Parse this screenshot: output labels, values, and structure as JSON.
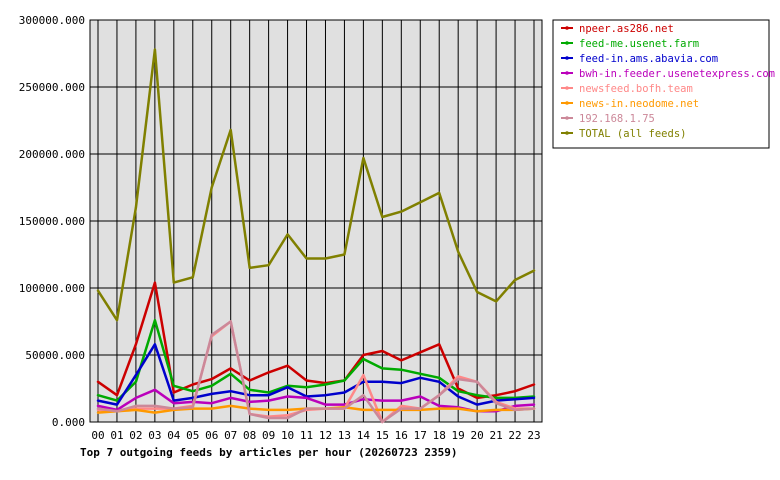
{
  "chart_data": {
    "type": "line",
    "title": "Top 7 outgoing feeds by articles per hour (20260723 2359)",
    "xlabel": "",
    "ylabel": "",
    "ylim": [
      0,
      300000
    ],
    "yticks": [
      "0.000",
      "50000.000",
      "100000.000",
      "150000.000",
      "200000.000",
      "250000.000",
      "300000.000"
    ],
    "ytick_values": [
      0,
      50000,
      100000,
      150000,
      200000,
      250000,
      300000
    ],
    "grid": true,
    "legend_position": "right",
    "x": [
      "00",
      "01",
      "02",
      "03",
      "04",
      "05",
      "06",
      "07",
      "08",
      "09",
      "10",
      "11",
      "12",
      "13",
      "14",
      "15",
      "16",
      "17",
      "18",
      "19",
      "20",
      "21",
      "22",
      "23"
    ],
    "series": [
      {
        "name": "npeer.as286.net",
        "color": "#cc0000",
        "values": [
          30000,
          20000,
          58000,
          104000,
          22000,
          28000,
          32000,
          40000,
          31000,
          37000,
          42000,
          31000,
          29000,
          31000,
          50000,
          53000,
          46000,
          52000,
          58000,
          25000,
          18000,
          20000,
          23000,
          28000
        ]
      },
      {
        "name": "feed-me.usenet.farm",
        "color": "#00aa00",
        "values": [
          20000,
          16000,
          30000,
          76000,
          27000,
          23000,
          27000,
          36000,
          24000,
          22000,
          27000,
          26000,
          28000,
          31000,
          47000,
          40000,
          39000,
          36000,
          33000,
          23000,
          20000,
          18000,
          18000,
          19000
        ]
      },
      {
        "name": "feed-in.ams.abavia.com",
        "color": "#0000cc",
        "values": [
          16000,
          13000,
          35000,
          58000,
          16000,
          18000,
          21000,
          23000,
          20000,
          20000,
          26000,
          19000,
          20000,
          22000,
          30000,
          30000,
          29000,
          33000,
          30000,
          19000,
          13000,
          16000,
          17000,
          18000
        ]
      },
      {
        "name": "bwh-in.feeder.usenetexpress.com",
        "color": "#bb00bb",
        "values": [
          12000,
          9000,
          18000,
          24000,
          14000,
          15000,
          14000,
          18000,
          15000,
          16000,
          19000,
          18000,
          13000,
          13000,
          17000,
          16000,
          16000,
          19000,
          12000,
          11000,
          8000,
          8000,
          12000,
          13000
        ]
      },
      {
        "name": "newsfeed.bofh.team",
        "color": "#ff8888",
        "values": [
          9000,
          8000,
          10000,
          10000,
          10000,
          12000,
          64000,
          75000,
          6000,
          4000,
          5000,
          9000,
          10000,
          10000,
          35000,
          0,
          12000,
          10000,
          20000,
          34000,
          30000,
          15000,
          10000,
          10000
        ]
      },
      {
        "name": "news-in.neodome.net",
        "color": "#ff9900",
        "values": [
          7000,
          8000,
          9000,
          7000,
          9000,
          10000,
          10000,
          12000,
          10000,
          9000,
          9000,
          10000,
          10000,
          11000,
          9000,
          9000,
          9000,
          9000,
          10000,
          10000,
          8000,
          9000,
          9000,
          10000
        ]
      },
      {
        "name": "192.168.1.75",
        "color": "#cc8899",
        "values": [
          10000,
          8000,
          12000,
          12000,
          10000,
          11000,
          65000,
          75000,
          6000,
          3000,
          3000,
          10000,
          10000,
          10000,
          20000,
          0,
          10000,
          10000,
          20000,
          32000,
          30000,
          14000,
          9000,
          10000
        ]
      },
      {
        "name": "TOTAL (all feeds)",
        "color": "#808000",
        "values": [
          98000,
          76000,
          160000,
          278000,
          104000,
          108000,
          175000,
          218000,
          115000,
          117000,
          140000,
          122000,
          122000,
          125000,
          197000,
          153000,
          157000,
          164000,
          171000,
          127000,
          97000,
          90000,
          106000,
          113000
        ]
      }
    ]
  }
}
